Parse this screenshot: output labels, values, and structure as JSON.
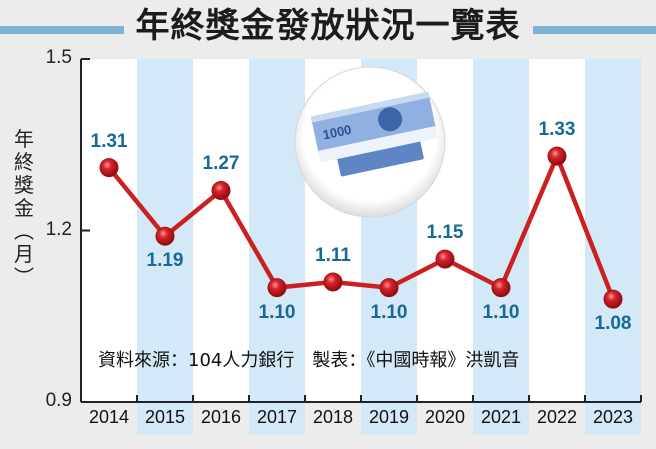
{
  "title": "年終獎金發放狀況一覽表",
  "y_axis": {
    "title_chars": [
      "年",
      "終",
      "獎",
      "金",
      "︵",
      "月",
      "︶"
    ],
    "ticks": [
      "1.5",
      "1.2",
      "0.9"
    ]
  },
  "source_note": "資料來源：104人力銀行　製表：《中國時報》洪凱音",
  "colors": {
    "line": "#cc1f1f",
    "marker": "#c8161d",
    "label": "#176a97",
    "band": "#d4e9f7",
    "title_bar": "#7fb3d5"
  },
  "image": {
    "description": "stack-of-1000-NTD-banknotes"
  },
  "years": [
    "2014",
    "2015",
    "2016",
    "2017",
    "2018",
    "2019",
    "2020",
    "2021",
    "2022",
    "2023"
  ],
  "value_labels": [
    "1.31",
    "1.19",
    "1.27",
    "1.10",
    "1.11",
    "1.10",
    "1.15",
    "1.10",
    "1.33",
    "1.08"
  ],
  "chart_data": {
    "type": "line",
    "title": "年終獎金發放狀況一覽表",
    "xlabel": "",
    "ylabel": "年終獎金（月）",
    "categories": [
      "2014",
      "2015",
      "2016",
      "2017",
      "2018",
      "2019",
      "2020",
      "2021",
      "2022",
      "2023"
    ],
    "values": [
      1.31,
      1.19,
      1.27,
      1.1,
      1.11,
      1.1,
      1.15,
      1.1,
      1.33,
      1.08
    ],
    "ylim": [
      0.9,
      1.5
    ],
    "yticks": [
      0.9,
      1.2,
      1.5
    ],
    "grid": false,
    "legend": null,
    "annotations": [
      "資料來源：104人力銀行",
      "製表：《中國時報》洪凱音"
    ]
  }
}
